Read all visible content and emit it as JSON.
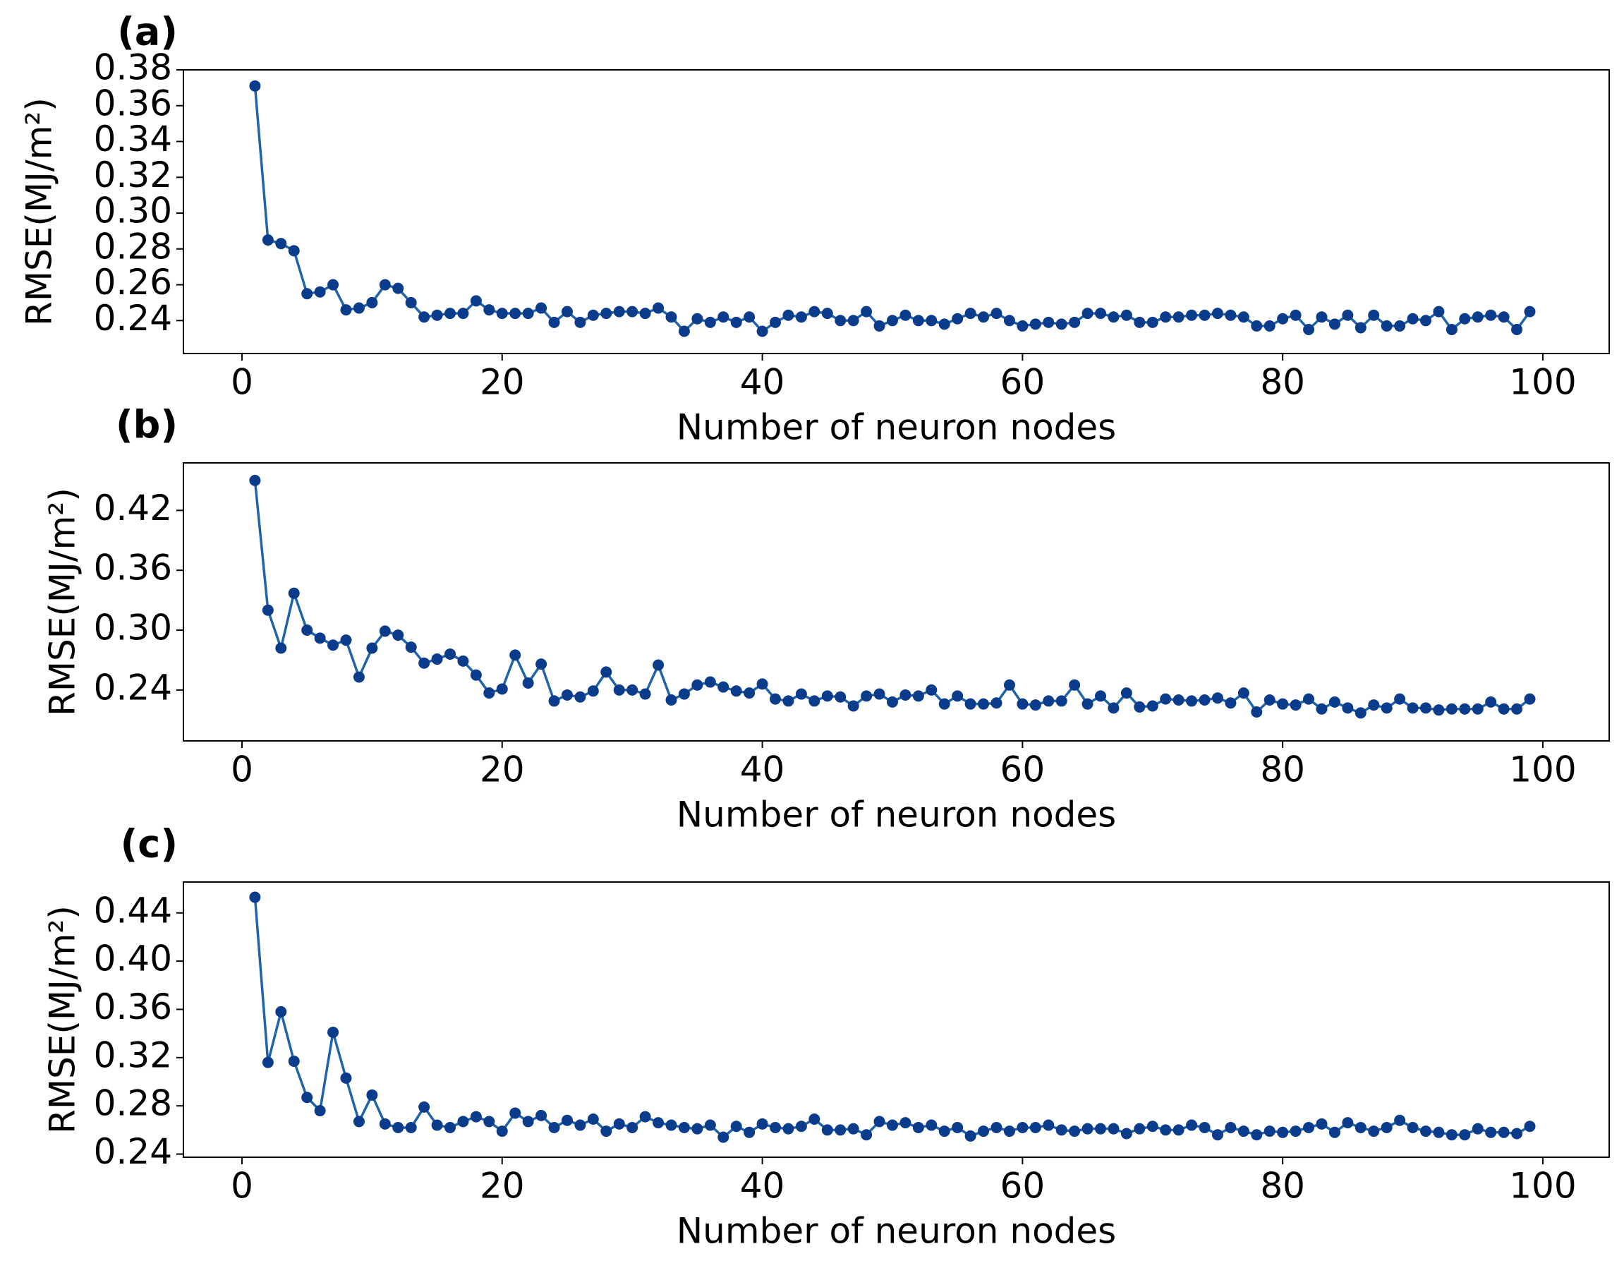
{
  "chart_data": [
    {
      "type": "line",
      "label": "(a)",
      "xlabel": "Number of neuron nodes",
      "ylabel": "RMSE(MJ/m²)",
      "color": "#1f63a8",
      "marker_color": "#0b3c8c",
      "grid": false,
      "x": [
        1,
        2,
        3,
        4,
        5,
        6,
        7,
        8,
        9,
        10,
        11,
        12,
        13,
        14,
        15,
        16,
        17,
        18,
        19,
        20,
        21,
        22,
        23,
        24,
        25,
        26,
        27,
        28,
        29,
        30,
        31,
        32,
        33,
        34,
        35,
        36,
        37,
        38,
        39,
        40,
        41,
        42,
        43,
        44,
        45,
        46,
        47,
        48,
        49,
        50,
        51,
        52,
        53,
        54,
        55,
        56,
        57,
        58,
        59,
        60,
        61,
        62,
        63,
        64,
        65,
        66,
        67,
        68,
        69,
        70,
        71,
        72,
        73,
        74,
        75,
        76,
        77,
        78,
        79,
        80,
        81,
        82,
        83,
        84,
        85,
        86,
        87,
        88,
        89,
        90,
        91,
        92,
        93,
        94,
        95,
        96,
        97,
        98,
        99
      ],
      "values": [
        0.371,
        0.285,
        0.283,
        0.279,
        0.255,
        0.256,
        0.26,
        0.246,
        0.247,
        0.25,
        0.26,
        0.258,
        0.25,
        0.242,
        0.243,
        0.244,
        0.244,
        0.251,
        0.246,
        0.244,
        0.244,
        0.244,
        0.247,
        0.239,
        0.245,
        0.239,
        0.243,
        0.244,
        0.245,
        0.245,
        0.244,
        0.247,
        0.242,
        0.234,
        0.241,
        0.239,
        0.242,
        0.239,
        0.242,
        0.234,
        0.239,
        0.243,
        0.242,
        0.245,
        0.244,
        0.24,
        0.24,
        0.245,
        0.237,
        0.24,
        0.243,
        0.24,
        0.24,
        0.238,
        0.241,
        0.244,
        0.242,
        0.244,
        0.24,
        0.237,
        0.238,
        0.239,
        0.238,
        0.239,
        0.244,
        0.244,
        0.242,
        0.243,
        0.239,
        0.239,
        0.242,
        0.242,
        0.243,
        0.243,
        0.244,
        0.243,
        0.242,
        0.237,
        0.237,
        0.241,
        0.243,
        0.235,
        0.242,
        0.238,
        0.243,
        0.236,
        0.243,
        0.237,
        0.237,
        0.241,
        0.24,
        0.245,
        0.235,
        0.241,
        0.242,
        0.243,
        0.242,
        0.235,
        0.245
      ],
      "xlim": [
        -4.5,
        105.1
      ],
      "xticks": [
        0,
        20,
        40,
        60,
        80,
        100
      ],
      "ylim": [
        0.2216,
        0.38
      ],
      "yticks": [
        0.24,
        0.26,
        0.28,
        {
          "value": 0.3,
          "label": "0.30"
        },
        0.32,
        0.34,
        0.36,
        0.38
      ]
    },
    {
      "type": "line",
      "label": "(b)",
      "xlabel": "Number of neuron nodes",
      "ylabel": "RMSE(MJ/m²)",
      "color": "#1f63a8",
      "marker_color": "#0b3c8c",
      "grid": false,
      "x": [
        1,
        2,
        3,
        4,
        5,
        6,
        7,
        8,
        9,
        10,
        11,
        12,
        13,
        14,
        15,
        16,
        17,
        18,
        19,
        20,
        21,
        22,
        23,
        24,
        25,
        26,
        27,
        28,
        29,
        30,
        31,
        32,
        33,
        34,
        35,
        36,
        37,
        38,
        39,
        40,
        41,
        42,
        43,
        44,
        45,
        46,
        47,
        48,
        49,
        50,
        51,
        52,
        53,
        54,
        55,
        56,
        57,
        58,
        59,
        60,
        61,
        62,
        63,
        64,
        65,
        66,
        67,
        68,
        69,
        70,
        71,
        72,
        73,
        74,
        75,
        76,
        77,
        78,
        79,
        80,
        81,
        82,
        83,
        84,
        85,
        86,
        87,
        88,
        89,
        90,
        91,
        92,
        93,
        94,
        95,
        96,
        97,
        98,
        99
      ],
      "values": [
        0.45,
        0.32,
        0.282,
        0.337,
        0.3,
        0.292,
        0.285,
        0.29,
        0.253,
        0.282,
        0.299,
        0.295,
        0.283,
        0.267,
        0.271,
        0.276,
        0.269,
        0.255,
        0.237,
        0.241,
        0.275,
        0.247,
        0.266,
        0.229,
        0.235,
        0.233,
        0.239,
        0.258,
        0.24,
        0.24,
        0.236,
        0.265,
        0.23,
        0.236,
        0.245,
        0.248,
        0.243,
        0.239,
        0.237,
        0.246,
        0.231,
        0.229,
        0.236,
        0.229,
        0.234,
        0.233,
        0.224,
        0.234,
        0.236,
        0.228,
        0.235,
        0.234,
        0.24,
        0.226,
        0.234,
        0.226,
        0.226,
        0.227,
        0.245,
        0.226,
        0.225,
        0.229,
        0.229,
        0.245,
        0.226,
        0.234,
        0.222,
        0.237,
        0.223,
        0.224,
        0.231,
        0.23,
        0.229,
        0.23,
        0.232,
        0.227,
        0.237,
        0.218,
        0.23,
        0.226,
        0.225,
        0.231,
        0.221,
        0.228,
        0.222,
        0.217,
        0.225,
        0.222,
        0.231,
        0.222,
        0.222,
        0.22,
        0.221,
        0.221,
        0.221,
        0.228,
        0.221,
        0.221,
        0.231
      ],
      "xlim": [
        -4.5,
        105.1
      ],
      "xticks": [
        0,
        20,
        40,
        60,
        80,
        100
      ],
      "ylim": [
        0.189,
        0.4676
      ],
      "yticks": [
        0.24,
        {
          "value": 0.3,
          "label": "0.30"
        },
        0.36,
        0.42
      ]
    },
    {
      "type": "line",
      "label": "(c)",
      "xlabel": "Number of neuron nodes",
      "ylabel": "RMSE(MJ/m²)",
      "color": "#1f63a8",
      "marker_color": "#0b3c8c",
      "grid": false,
      "x": [
        1,
        2,
        3,
        4,
        5,
        6,
        7,
        8,
        9,
        10,
        11,
        12,
        13,
        14,
        15,
        16,
        17,
        18,
        19,
        20,
        21,
        22,
        23,
        24,
        25,
        26,
        27,
        28,
        29,
        30,
        31,
        32,
        33,
        34,
        35,
        36,
        37,
        38,
        39,
        40,
        41,
        42,
        43,
        44,
        45,
        46,
        47,
        48,
        49,
        50,
        51,
        52,
        53,
        54,
        55,
        56,
        57,
        58,
        59,
        60,
        61,
        62,
        63,
        64,
        65,
        66,
        67,
        68,
        69,
        70,
        71,
        72,
        73,
        74,
        75,
        76,
        77,
        78,
        79,
        80,
        81,
        82,
        83,
        84,
        85,
        86,
        87,
        88,
        89,
        90,
        91,
        92,
        93,
        94,
        95,
        96,
        97,
        98,
        99
      ],
      "values": [
        0.453,
        0.316,
        0.358,
        0.317,
        0.287,
        0.276,
        0.341,
        0.303,
        0.267,
        0.289,
        0.265,
        0.262,
        0.262,
        0.279,
        0.264,
        0.262,
        0.267,
        0.271,
        0.267,
        0.259,
        0.274,
        0.267,
        0.272,
        0.262,
        0.268,
        0.264,
        0.269,
        0.259,
        0.265,
        0.262,
        0.271,
        0.266,
        0.264,
        0.262,
        0.261,
        0.264,
        0.254,
        0.263,
        0.258,
        0.265,
        0.262,
        0.261,
        0.263,
        0.269,
        0.26,
        0.26,
        0.261,
        0.256,
        0.267,
        0.264,
        0.266,
        0.262,
        0.264,
        0.259,
        0.262,
        0.255,
        0.259,
        0.262,
        0.259,
        0.262,
        0.262,
        0.264,
        0.26,
        0.259,
        0.261,
        0.261,
        0.261,
        0.257,
        0.261,
        0.263,
        0.26,
        0.26,
        0.264,
        0.262,
        0.256,
        0.262,
        0.259,
        0.256,
        0.259,
        0.258,
        0.259,
        0.262,
        0.265,
        0.258,
        0.266,
        0.262,
        0.259,
        0.262,
        0.268,
        0.262,
        0.259,
        0.258,
        0.256,
        0.256,
        0.261,
        0.258,
        0.258,
        0.257,
        0.263
      ],
      "xlim": [
        -4.5,
        105.1
      ],
      "xticks": [
        0,
        20,
        40,
        60,
        80,
        100
      ],
      "ylim": [
        0.2374,
        0.4656
      ],
      "yticks": [
        0.24,
        0.28,
        0.32,
        0.36,
        {
          "value": 0.4,
          "label": "0.40"
        },
        0.44
      ]
    }
  ]
}
